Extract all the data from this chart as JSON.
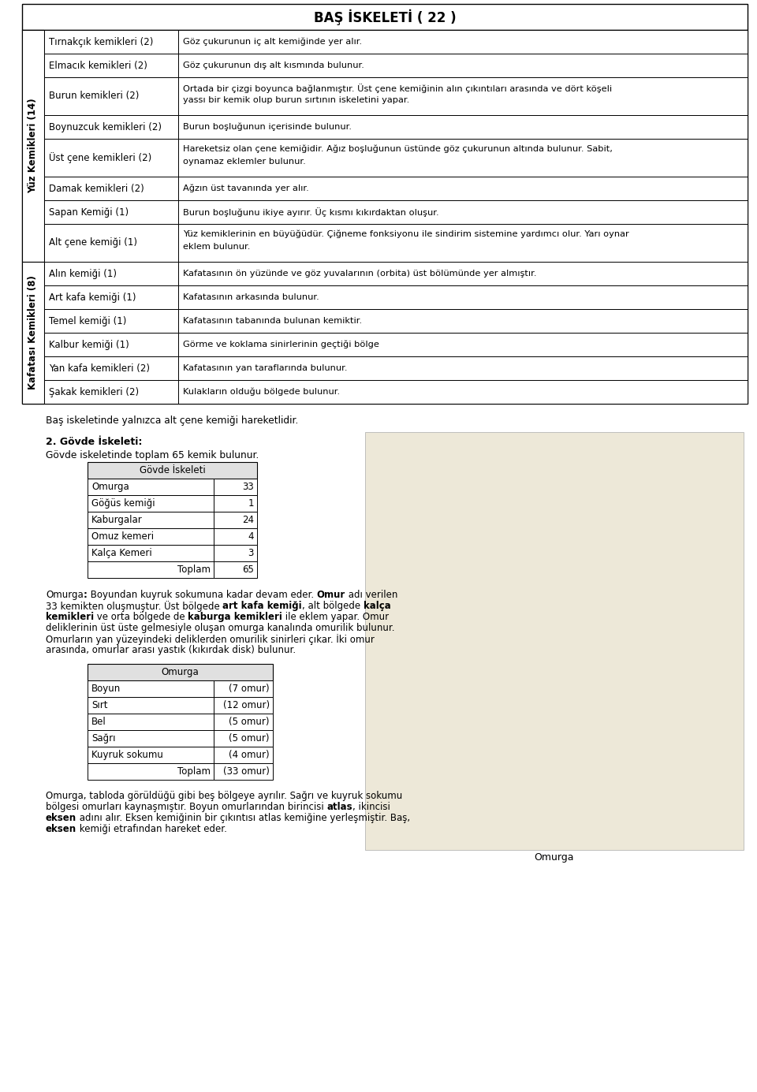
{
  "title": "BAŞ İSKELETİ ( 22 )",
  "yuz_label": "Yüz Kemikleri (14)",
  "kafatasi_label": "Kafatası Kemikleri (8)",
  "yuz_rows": [
    [
      "Tırnakçık kemikleri (2)",
      "Göz çukurunun iç alt kemiğinde yer alır."
    ],
    [
      "Elmacık kemikleri (2)",
      "Göz çukurunun dış alt kısmında bulunur."
    ],
    [
      "Burun kemikleri (2)",
      "Ortada bir çizgi boyunca bağlanmıştır. Üst çene kemiğinin alın çıkıntıları arasında ve dört köşeli\nyassı bir kemik olup burun sırtının iskeletini yapar."
    ],
    [
      "Boynuzcuk kemikleri (2)",
      "Burun boşluğunun içerisinde bulunur."
    ],
    [
      "Üst çene kemikleri (2)",
      "Hareketsiz olan çene kemiğidir. Ağız boşluğunun üstünde göz çukurunun altında bulunur. Sabit,\noynamaz eklemler bulunur."
    ],
    [
      "Damak kemikleri (2)",
      "Ağzın üst tavanında yer alır."
    ],
    [
      "Sapan Kemiği (1)",
      "Burun boşluğunu ikiye ayırır. Üç kısmı kıkırdaktan oluşur."
    ],
    [
      "Alt çene kemiği (1)",
      "Yüz kemiklerinin en büyüğüdür. Çiğneme fonksiyonu ile sindirim sistemine yardımcı olur. Yarı oynar\neklem bulunur."
    ]
  ],
  "kafatasi_rows": [
    [
      "Alın kemiği (1)",
      "Kafatasının ön yüzünde ve göz yuvalarının (orbita) üst bölümünde yer almıştır."
    ],
    [
      "Art kafa kemiği (1)",
      "Kafatasının arkasında bulunur."
    ],
    [
      "Temel kemiği (1)",
      "Kafatasının tabanında bulunan kemiktir."
    ],
    [
      "Kalbur kemiği (1)",
      "Görme ve koklama sinirlerinin geçtiği bölge"
    ],
    [
      "Yan kafa kemikleri (2)",
      "Kafatasının yan taraflarında bulunur."
    ],
    [
      "Şakak kemikleri (2)",
      "Kulakların olduğu bölgede bulunur."
    ]
  ],
  "note_text": "Baş iskeletinde yalnızca alt çene kemiği hareketlidir.",
  "section2_title": "2. Gövde İskeleti:",
  "section2_subtitle": "Gövde iskeletinde toplam 65 kemik bulunur.",
  "govde_table_title": "Gövde İskeleti",
  "govde_rows": [
    [
      "Omurga",
      "33"
    ],
    [
      "Göğüs kemiği",
      "1"
    ],
    [
      "Kaburgalar",
      "24"
    ],
    [
      "Omuz kemeri",
      "4"
    ],
    [
      "Kalça Kemeri",
      "3"
    ]
  ],
  "govde_toplam": [
    "Toplam",
    "65"
  ],
  "omurga_para1_segments": [
    [
      [
        false,
        "Omurga"
      ],
      [
        true,
        ":"
      ],
      [
        false,
        " Boyundan kuyruk sokumuna kadar devam eder. "
      ],
      [
        true,
        "Omur"
      ],
      [
        false,
        " adı verilen"
      ]
    ],
    [
      [
        false,
        "33 kemikten oluşmuştur. Üst bölgede "
      ],
      [
        true,
        "art kafa kemiği"
      ],
      [
        false,
        ", alt bölgede "
      ],
      [
        true,
        "kalça"
      ]
    ],
    [
      [
        true,
        "kemikleri"
      ],
      [
        false,
        " ve orta bölgede de "
      ],
      [
        true,
        "kaburga kemikleri"
      ],
      [
        false,
        " ile eklem yapar. Omur"
      ]
    ],
    [
      [
        false,
        "deliklerinin üst üste gelmesiyle oluşan omurga kanalında omurilik bulunur."
      ]
    ],
    [
      [
        false,
        "Omurların yan yüzeyindeki deliklerden omurilik sinirleri çıkar. İki omur"
      ]
    ],
    [
      [
        false,
        "arasında, omurlar arası yastık (kıkırdak disk) bulunur."
      ]
    ]
  ],
  "omurga_table_title": "Omurga",
  "omurga_rows": [
    [
      "Boyun",
      "(7 omur)"
    ],
    [
      "Sırt",
      "(12 omur)"
    ],
    [
      "Bel",
      "(5 omur)"
    ],
    [
      "Sağrı",
      "(5 omur)"
    ],
    [
      "Kuyruk sokumu",
      "(4 omur)"
    ]
  ],
  "omurga_toplam": [
    "Toplam",
    "(33 omur)"
  ],
  "omurga_para2_segments": [
    [
      [
        false,
        "Omurga, tabloda görüldüğü gibi beş bölgeye ayrılır. Sağrı ve kuyruk sokumu"
      ]
    ],
    [
      [
        false,
        "bölgesi omurları kaynaşmıştır. Boyun omurlarından birincisi "
      ],
      [
        true,
        "atlas"
      ],
      [
        false,
        ", ikincisi"
      ]
    ],
    [
      [
        true,
        "eksen"
      ],
      [
        false,
        " adını alır. Eksen kemiğinin bir çıkıntısı atlas kemiğine yerleşmiştir. Baş,"
      ]
    ],
    [
      [
        true,
        "eksen"
      ],
      [
        false,
        " kemiği etrafından hareket eder."
      ]
    ]
  ],
  "omurga_caption": "Omurga",
  "bg_color": "#ffffff",
  "text_color": "#000000"
}
